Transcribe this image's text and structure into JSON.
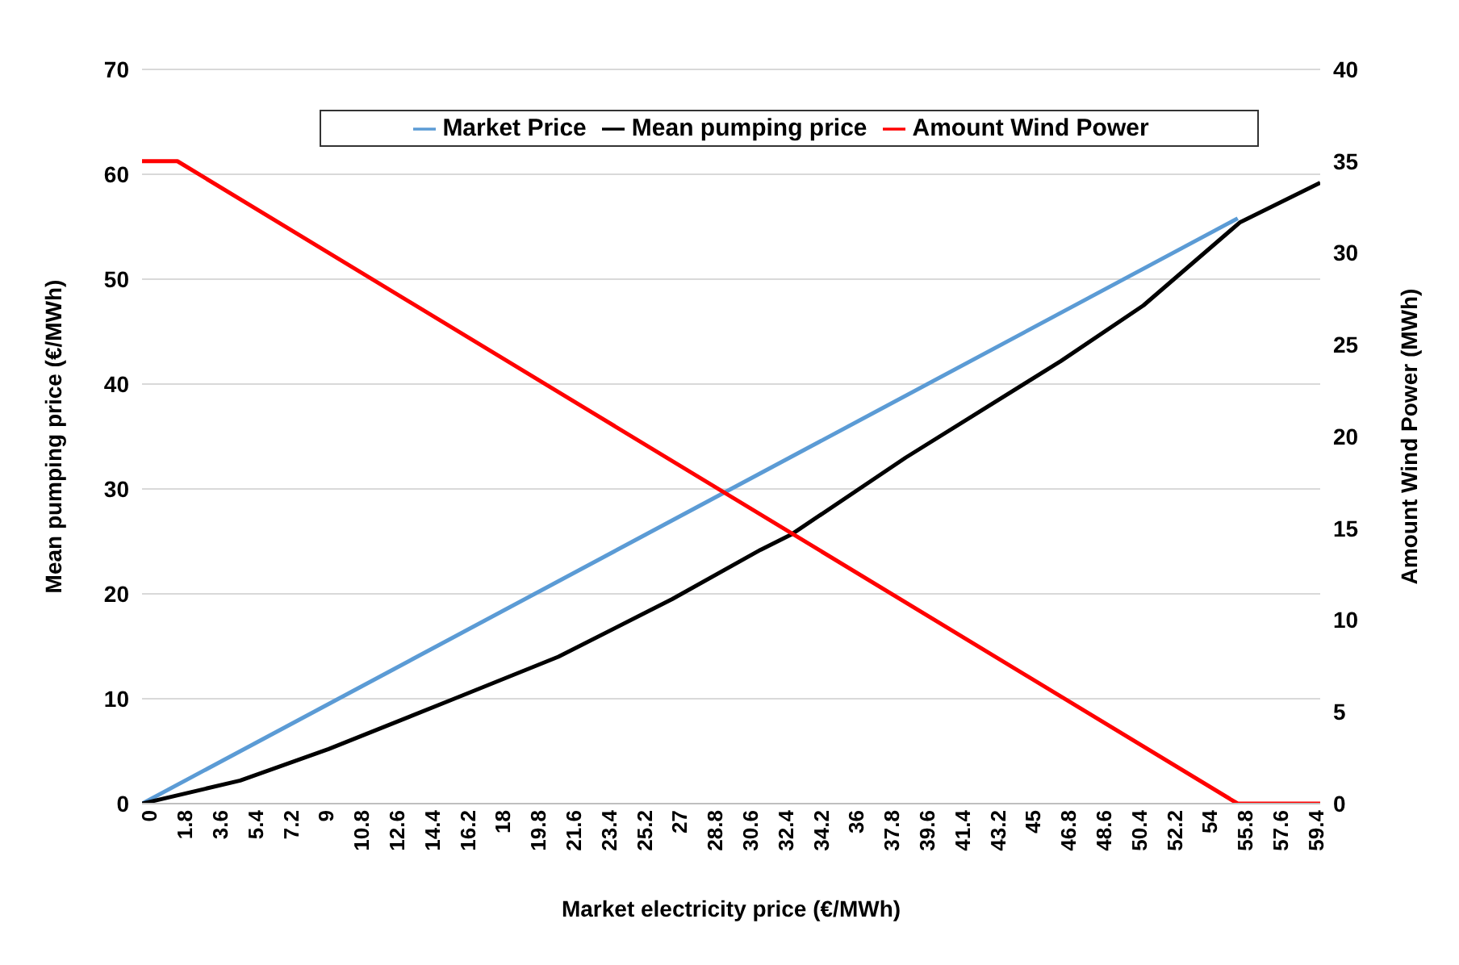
{
  "chart_data": {
    "type": "line",
    "xlabel": "Market electricity price (€/MWh)",
    "ylabel": "Mean pumping price (€/MWh)",
    "y2label": "Amount Wind Power (MWh)",
    "xlim": [
      0,
      60
    ],
    "xticks": [
      0,
      1.8,
      3.6,
      5.4,
      7.2,
      9,
      10.8,
      12.6,
      14.4,
      16.2,
      18,
      19.8,
      21.6,
      23.4,
      25.2,
      27,
      28.8,
      30.6,
      32.4,
      34.2,
      36,
      37.8,
      39.6,
      41.4,
      43.2,
      45,
      46.8,
      48.6,
      50.4,
      52.2,
      54,
      55.8,
      57.6,
      59.4
    ],
    "ylim": [
      0,
      70
    ],
    "yticks": [
      0,
      10,
      20,
      30,
      40,
      50,
      60,
      70
    ],
    "y2lim": [
      0,
      40
    ],
    "y2ticks": [
      0,
      5,
      10,
      15,
      20,
      25,
      30,
      35,
      40
    ],
    "grid": "y",
    "legend": "top",
    "marker": "none",
    "line_style": "solid",
    "series": [
      {
        "name": "Market Price",
        "color": "#5b9bd5",
        "x": [
          0,
          55.8
        ],
        "values": [
          0,
          55.8
        ]
      },
      {
        "name": "Mean pumping price",
        "color": "#000000",
        "x": [
          0,
          5,
          9.5,
          15.9,
          21.2,
          27,
          31.5,
          33.1,
          38.9,
          46.8,
          51,
          55.9,
          60
        ],
        "values": [
          0,
          2.2,
          5.2,
          10,
          14,
          19.5,
          24.2,
          25.7,
          33,
          42.2,
          47.5,
          55.4,
          59.2
        ]
      },
      {
        "name": "Amount Wind Power",
        "color": "#ff0000",
        "axis": "y2",
        "x": [
          0,
          1.8,
          55.8,
          60
        ],
        "values": [
          35,
          35,
          0,
          0
        ]
      }
    ]
  }
}
